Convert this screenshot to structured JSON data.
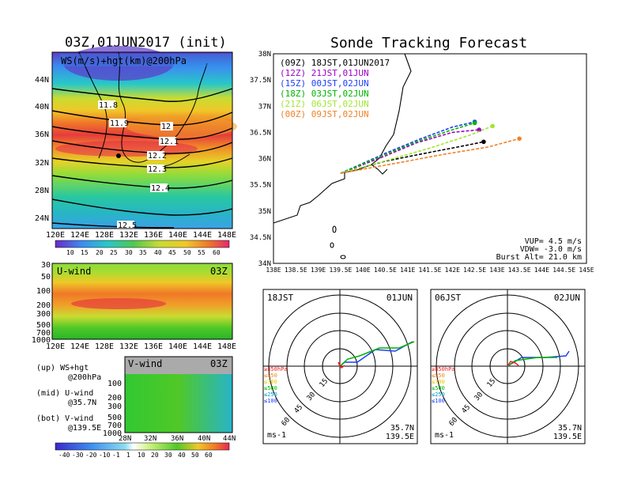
{
  "left_title": "03Z,01JUN2017 (init)",
  "right_title": "Sonde Tracking Forecast",
  "map_panel": {
    "label": "WS(m/s)+hgt(km)@200hPa",
    "lat_ticks": [
      "44N",
      "40N",
      "36N",
      "32N",
      "28N",
      "24N"
    ],
    "lon_ticks": [
      "120E",
      "124E",
      "128E",
      "132E",
      "136E",
      "140E",
      "144E",
      "148E"
    ],
    "contour_labels": [
      "11.8",
      "11.9",
      "12",
      "12.1",
      "12.2",
      "12.3",
      "12.4",
      "12.5"
    ],
    "colorbar_ticks": [
      "10",
      "15",
      "20",
      "25",
      "30",
      "35",
      "40",
      "45",
      "50",
      "55",
      "60"
    ]
  },
  "u_panel": {
    "label": "U-wind",
    "time": "03Z",
    "p_ticks": [
      "30",
      "50",
      "100",
      "200",
      "300",
      "500",
      "700",
      "1000"
    ],
    "lon_ticks": [
      "120E",
      "124E",
      "128E",
      "132E",
      "136E",
      "140E",
      "144E",
      "148E"
    ]
  },
  "v_panel": {
    "label": "V-wind",
    "time": "03Z",
    "p_ticks": [
      "100",
      "200",
      "300",
      "500",
      "700",
      "1000"
    ],
    "lat_ticks": [
      "28N",
      "32N",
      "36N",
      "40N",
      "44N"
    ],
    "colorbar_ticks": [
      "-40",
      "-30",
      "-20",
      "-10",
      "-1",
      "1",
      "10",
      "20",
      "30",
      "40",
      "50",
      "60"
    ]
  },
  "notes": [
    {
      "head": "(up) WS+hgt",
      "sub": "@200hPa"
    },
    {
      "head": "(mid) U-wind",
      "sub": "@35.7N"
    },
    {
      "head": "(bot) V-wind",
      "sub": "@139.5E"
    }
  ],
  "track_panel": {
    "lat_ticks": [
      "38N",
      "37.5N",
      "37N",
      "36.5N",
      "36N",
      "35.5N",
      "35N",
      "34.5N",
      "34N"
    ],
    "lon_ticks": [
      "138E",
      "138.5E",
      "139E",
      "139.5E",
      "140E",
      "140.5E",
      "141E",
      "141.5E",
      "142E",
      "142.5E",
      "143E",
      "143.5E",
      "144E",
      "144.5E",
      "145E"
    ],
    "legend": [
      {
        "code": "(09Z)",
        "time": "18JST,01JUN2017",
        "color": "#000000"
      },
      {
        "code": "(12Z)",
        "time": "21JST,01JUN",
        "color": "#a000c8"
      },
      {
        "code": "(15Z)",
        "time": "00JST,02JUN",
        "color": "#1e3cff"
      },
      {
        "code": "(18Z)",
        "time": "03JST,02JUN",
        "color": "#00b400"
      },
      {
        "code": "(21Z)",
        "time": "06JST,02JUN",
        "color": "#a0e632"
      },
      {
        "code": "(00Z)",
        "time": "09JST,02JUN",
        "color": "#f08228"
      }
    ],
    "params": [
      "VUP=  4.5 m/s",
      "VDW= -3.0 m/s",
      "Burst Alt= 21.0 km"
    ]
  },
  "hodographs": [
    {
      "left": "18JST",
      "right": "01JUN",
      "rings": [
        "15",
        "30",
        "45",
        "60"
      ],
      "unit": "ms-1",
      "lat": "35.7N",
      "lon": "139.5E",
      "levels": [
        {
          "t": "≥850hPa",
          "c": "#f02020"
        },
        {
          "t": "≤850",
          "c": "#f08228"
        },
        {
          "t": "≤700",
          "c": "#e6c800"
        },
        {
          "t": "≤500",
          "c": "#00b400"
        },
        {
          "t": "≤250",
          "c": "#00a0c8"
        },
        {
          "t": "≤100",
          "c": "#1e3cff"
        }
      ]
    },
    {
      "left": "06JST",
      "right": "02JUN",
      "rings": [
        "15",
        "30",
        "45",
        "60"
      ],
      "unit": "ms-1",
      "lat": "35.7N",
      "lon": "139.5E",
      "levels": [
        {
          "t": "≥850hPa",
          "c": "#f02020"
        },
        {
          "t": "≤850",
          "c": "#f08228"
        },
        {
          "t": "≤700",
          "c": "#e6c800"
        },
        {
          "t": "≤500",
          "c": "#00b400"
        },
        {
          "t": "≤250",
          "c": "#00a0c8"
        },
        {
          "t": "≤100",
          "c": "#1e3cff"
        }
      ]
    }
  ],
  "chart_data": [
    {
      "type": "line",
      "title": "Sonde Tracking Forecast",
      "xlabel": "",
      "ylabel": "",
      "xlim": [
        138,
        145
      ],
      "ylim": [
        34,
        38
      ],
      "series": [
        {
          "name": "(09Z) 18JST,01JUN2017",
          "x": [
            139.5,
            140.5,
            141.5,
            142.3,
            142.7
          ],
          "y": [
            35.72,
            35.95,
            36.12,
            36.25,
            36.32
          ]
        },
        {
          "name": "(12Z) 21JST,01JUN",
          "x": [
            139.5,
            140.5,
            141.2,
            142.0,
            142.6
          ],
          "y": [
            35.72,
            36.05,
            36.3,
            36.5,
            36.55
          ]
        },
        {
          "name": "(15Z) 00JST,02JUN",
          "x": [
            139.5,
            140.5,
            141.3,
            142.0,
            142.5
          ],
          "y": [
            35.72,
            36.1,
            36.38,
            36.6,
            36.7
          ]
        },
        {
          "name": "(18Z) 03JST,02JUN",
          "x": [
            139.5,
            140.5,
            141.3,
            142.0,
            142.5
          ],
          "y": [
            35.72,
            36.08,
            36.35,
            36.55,
            36.68
          ]
        },
        {
          "name": "(21Z) 06JST,02JUN",
          "x": [
            139.5,
            140.6,
            141.5,
            142.4,
            142.9
          ],
          "y": [
            35.72,
            35.98,
            36.2,
            36.45,
            36.62
          ]
        },
        {
          "name": "(00Z) 09JST,02JUN",
          "x": [
            139.5,
            140.8,
            141.8,
            142.8,
            143.5
          ],
          "y": [
            35.72,
            35.92,
            36.08,
            36.22,
            36.38
          ]
        }
      ]
    }
  ]
}
